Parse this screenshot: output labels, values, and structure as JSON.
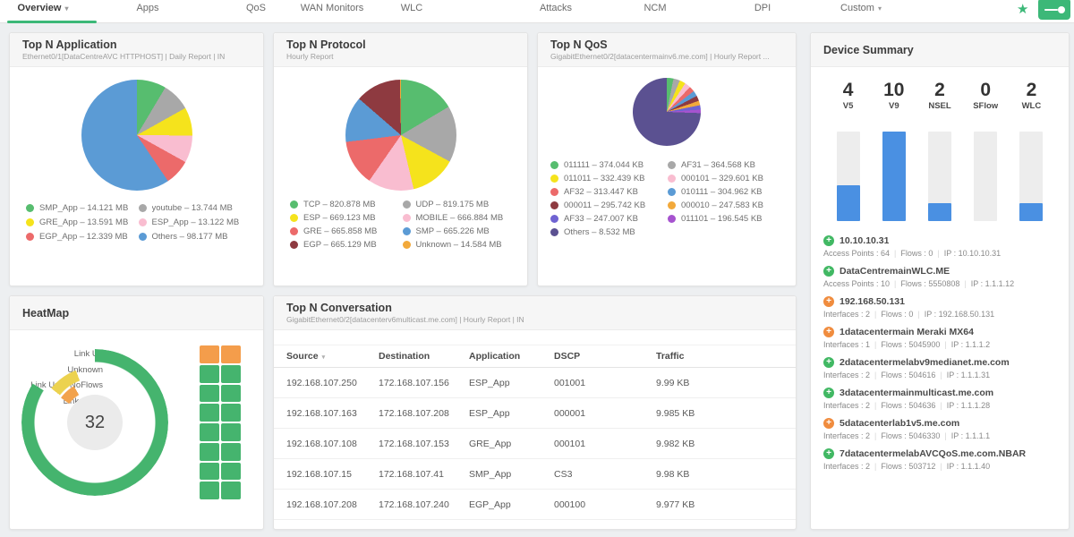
{
  "nav": {
    "accent_color": "#3cb878",
    "star_glyph": "★",
    "tabs": [
      {
        "label": "Overview",
        "active": true,
        "chevron": true
      },
      {
        "label": "Apps"
      },
      {
        "label": "QoS"
      },
      {
        "label": "WAN Monitors"
      },
      {
        "label": "WLC"
      },
      {
        "label": "Attacks"
      },
      {
        "label": "NCM"
      },
      {
        "label": "DPI"
      },
      {
        "label": "Custom",
        "chevron": true
      }
    ]
  },
  "panels": {
    "application": {
      "title": "Top N Application",
      "subtitle": "Ethernet0/1[DataCentreAVC HTTPHOST] | Daily Report | IN",
      "chart": {
        "type": "pie",
        "unit": "MB",
        "labels": [
          "SMP_App",
          "youtube",
          "GRE_App",
          "ESP_App",
          "EGP_App",
          "Others"
        ],
        "values": [
          14.121,
          13.744,
          13.591,
          13.122,
          12.339,
          98.177
        ],
        "display": [
          "14.121 MB",
          "13.744 MB",
          "13.591 MB",
          "13.122 MB",
          "12.339 MB",
          "98.177 MB"
        ],
        "colors": [
          "#57bd6f",
          "#a8a8a8",
          "#f5e31c",
          "#f9bdd0",
          "#ec6a6a",
          "#5b9bd5"
        ]
      }
    },
    "protocol": {
      "title": "Top N Protocol",
      "subtitle": "Hourly Report",
      "chart": {
        "type": "pie",
        "unit": "MB",
        "labels": [
          "TCP",
          "UDP",
          "ESP",
          "MOBILE",
          "GRE",
          "SMP",
          "EGP",
          "Unknown"
        ],
        "values": [
          820.878,
          819.175,
          669.123,
          666.884,
          665.858,
          665.226,
          665.129,
          14.584
        ],
        "display": [
          "820.878 MB",
          "819.175 MB",
          "669.123 MB",
          "666.884 MB",
          "665.858 MB",
          "665.226 MB",
          "665.129 MB",
          "14.584 MB"
        ],
        "colors": [
          "#57bd6f",
          "#a8a8a8",
          "#f5e31c",
          "#f9bdd0",
          "#ec6a6a",
          "#5b9bd5",
          "#8e3a40",
          "#f2a93b"
        ]
      }
    },
    "qos": {
      "title": "Top N QoS",
      "subtitle": "GigabitEthernet0/2[datacentermainv6.me.com] | Hourly Report ...",
      "chart": {
        "type": "pie",
        "unit": "KB",
        "labels": [
          "011111",
          "AF31",
          "011011",
          "000101",
          "AF32",
          "010111",
          "000011",
          "000010",
          "AF33",
          "011101",
          "Others"
        ],
        "values": [
          374.044,
          364.568,
          332.439,
          329.601,
          313.447,
          304.962,
          295.742,
          247.583,
          247.007,
          196.545,
          8736.77
        ],
        "display": [
          "374.044 KB",
          "364.568 KB",
          "332.439 KB",
          "329.601 KB",
          "313.447 KB",
          "304.962 KB",
          "295.742 KB",
          "247.583 KB",
          "247.007 KB",
          "196.545 KB",
          "8.532 MB"
        ],
        "colors": [
          "#57bd6f",
          "#a8a8a8",
          "#f5e31c",
          "#f9bdd0",
          "#ec6a6a",
          "#5b9bd5",
          "#8e3a40",
          "#f2a93b",
          "#6f63d2",
          "#a653cf",
          "#5b5191"
        ]
      }
    },
    "device_summary": {
      "title": "Device Summary",
      "max": 10,
      "bar_color": "#4a90e2",
      "track_color": "#ededed",
      "stats": [
        {
          "value": "4",
          "label": "V5"
        },
        {
          "value": "10",
          "label": "V9"
        },
        {
          "value": "2",
          "label": "NSEL"
        },
        {
          "value": "0",
          "label": "SFlow"
        },
        {
          "value": "2",
          "label": "WLC"
        }
      ],
      "devices": [
        {
          "name": "10.10.10.31",
          "status_color": "#41b863",
          "meta": [
            "Access Points : 64",
            "Flows : 0",
            "IP : 10.10.10.31"
          ]
        },
        {
          "name": "DataCentremainWLC.ME",
          "status_color": "#41b863",
          "meta": [
            "Access Points : 10",
            "Flows : 5550808",
            "IP : 1.1.1.12"
          ]
        },
        {
          "name": "192.168.50.131",
          "status_color": "#f08c3e",
          "meta": [
            "Interfaces : 2",
            "Flows : 0",
            "IP : 192.168.50.131"
          ]
        },
        {
          "name": "1datacentermain Meraki MX64",
          "status_color": "#f08c3e",
          "meta": [
            "Interfaces : 1",
            "Flows : 5045900",
            "IP : 1.1.1.2"
          ]
        },
        {
          "name": "2datacentermelabv9medianet.me.com",
          "status_color": "#41b863",
          "meta": [
            "Interfaces : 2",
            "Flows : 504616",
            "IP : 1.1.1.31"
          ]
        },
        {
          "name": "3datacentermainmulticast.me.com",
          "status_color": "#41b863",
          "meta": [
            "Interfaces : 2",
            "Flows : 504636",
            "IP : 1.1.1.28"
          ]
        },
        {
          "name": "5datacenterlab1v5.me.com",
          "status_color": "#f08c3e",
          "meta": [
            "Interfaces : 2",
            "Flows : 5046330",
            "IP : 1.1.1.1"
          ]
        },
        {
          "name": "7datacentermelabAVCQoS.me.com.NBAR",
          "status_color": "#41b863",
          "meta": [
            "Interfaces : 2",
            "Flows : 503712",
            "IP : 1.1.1.40"
          ]
        }
      ]
    },
    "heatmap": {
      "title": "HeatMap",
      "total": "32",
      "legend": [
        "Link Up",
        "Unknown",
        "Link Up & NoFlows",
        "Link Down"
      ],
      "rings": [
        {
          "label": "Link Up",
          "color": "#45b46e",
          "start": 0,
          "end": 302
        },
        {
          "label": "Unknown",
          "color": "#ecd24f",
          "start": 308,
          "end": 340
        },
        {
          "label": "Link Up & NoFlows",
          "color": "#f2a24c",
          "start": 306,
          "end": 330
        }
      ],
      "grid": {
        "cols": 2,
        "rows": 8,
        "cell_colors": [
          "#f49d4b",
          "#f49d4b",
          "#45b46e",
          "#45b46e",
          "#45b46e",
          "#45b46e",
          "#45b46e",
          "#45b46e",
          "#45b46e",
          "#45b46e",
          "#45b46e",
          "#45b46e",
          "#45b46e",
          "#45b46e",
          "#45b46e",
          "#45b46e"
        ]
      }
    },
    "conversation": {
      "title": "Top N Conversation",
      "subtitle": "GigabitEthernet0/2[datacenterv6multicast.me.com] | Hourly Report | IN",
      "table": {
        "type": "table",
        "columns": [
          {
            "label": "Source",
            "sortable": true
          },
          {
            "label": "Destination"
          },
          {
            "label": "Application"
          },
          {
            "label": "DSCP"
          },
          {
            "label": "Traffic"
          }
        ],
        "rows": [
          [
            "192.168.107.250",
            "172.168.107.156",
            "ESP_App",
            "001001",
            "9.99 KB"
          ],
          [
            "192.168.107.163",
            "172.168.107.208",
            "ESP_App",
            "000001",
            "9.985 KB"
          ],
          [
            "192.168.107.108",
            "172.168.107.153",
            "GRE_App",
            "000101",
            "9.982 KB"
          ],
          [
            "192.168.107.15",
            "172.168.107.41",
            "SMP_App",
            "CS3",
            "9.98 KB"
          ],
          [
            "192.168.107.208",
            "172.168.107.240",
            "EGP_App",
            "000100",
            "9.977 KB"
          ]
        ]
      }
    }
  }
}
